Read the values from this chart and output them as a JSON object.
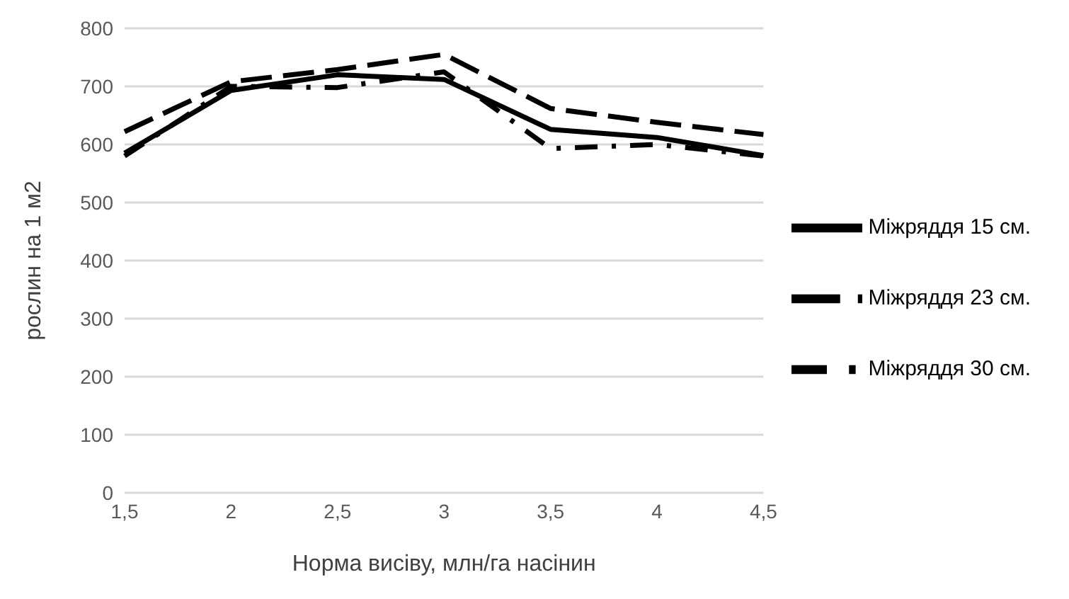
{
  "chart_data": {
    "type": "line",
    "xlabel": "Норма висіву, млн/га насінин",
    "ylabel": "рослин на 1 м2",
    "categories": [
      "1,5",
      "2",
      "2,5",
      "3",
      "3,5",
      "4",
      "4,5"
    ],
    "series": [
      {
        "name": "Міжряддя 15 см.",
        "color": "#000000",
        "line_style": "solid",
        "values": [
          585,
          693,
          720,
          712,
          626,
          612,
          581
        ]
      },
      {
        "name": "Міжряддя 23 см.",
        "color": "#000000",
        "line_style": "dashed",
        "values": [
          622,
          708,
          729,
          755,
          662,
          638,
          617
        ]
      },
      {
        "name": "Міжряддя 30 см.",
        "color": "#000000",
        "line_style": "dashdot",
        "values": [
          580,
          700,
          698,
          725,
          593,
          600,
          580
        ]
      }
    ],
    "ylim": [
      0,
      800
    ],
    "yticks": [
      0,
      100,
      200,
      300,
      400,
      500,
      600,
      700,
      800
    ],
    "grid": "y",
    "legend": "right",
    "marker": "none"
  }
}
